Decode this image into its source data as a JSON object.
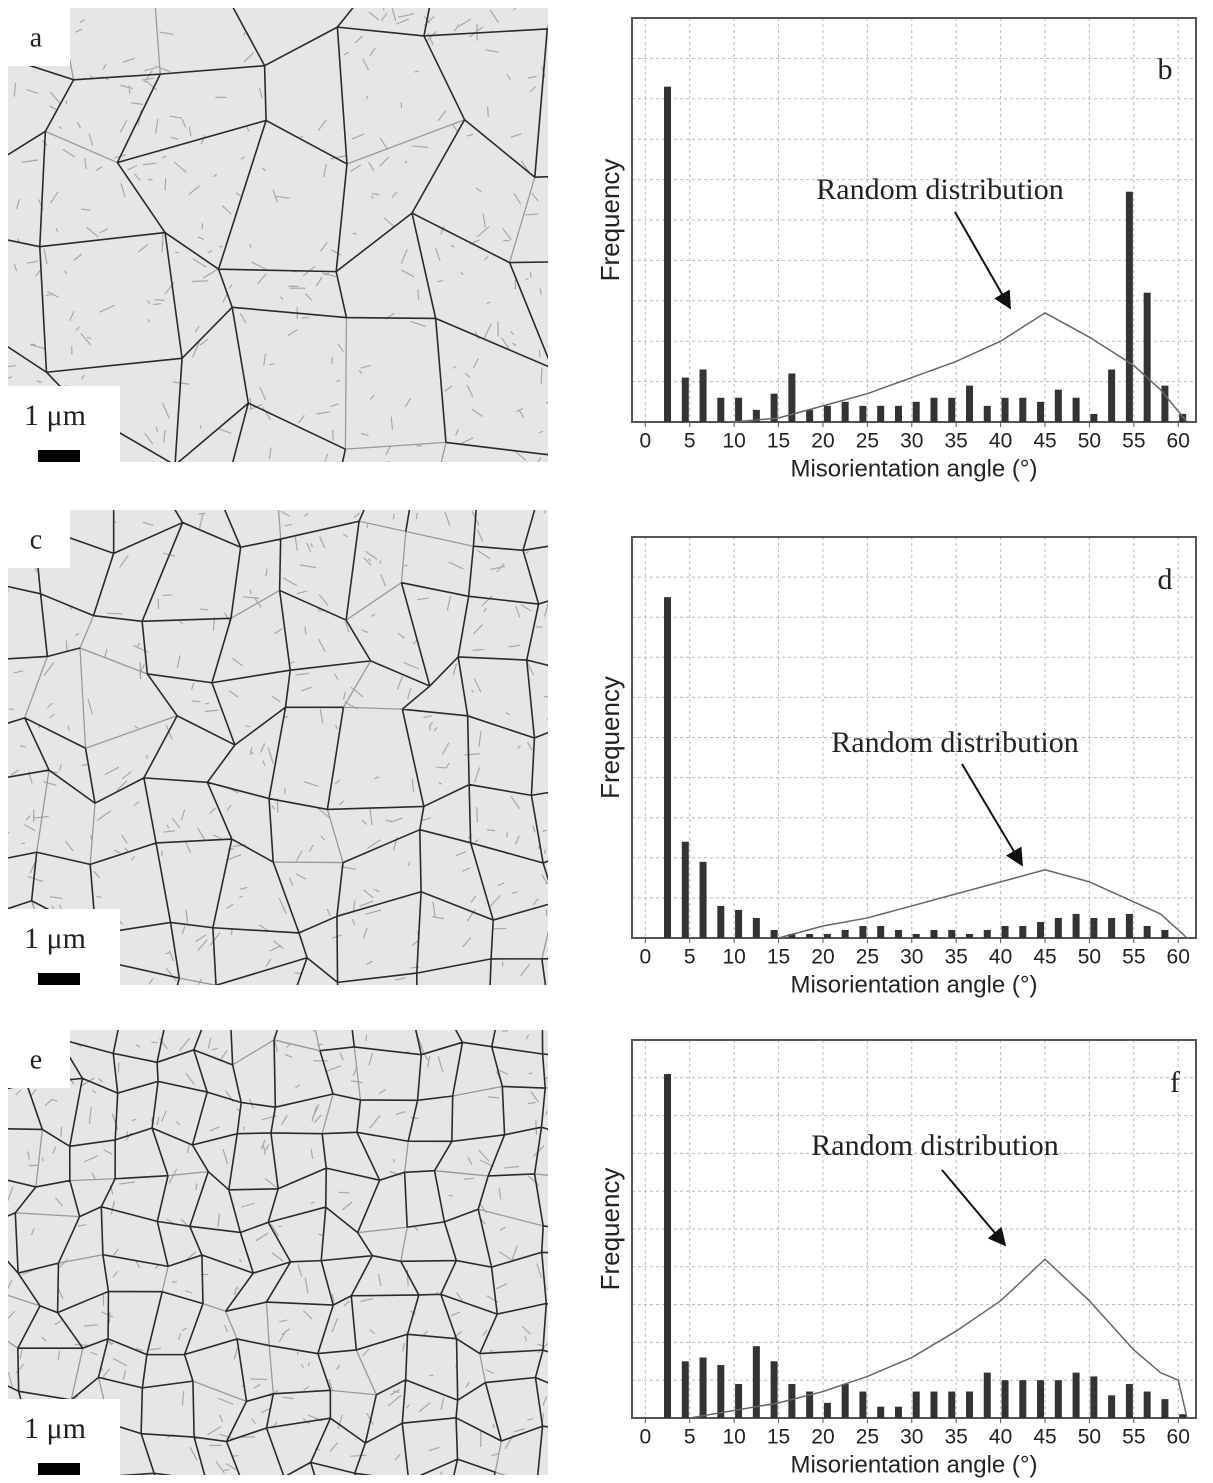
{
  "micrographs": [
    {
      "label": "a",
      "scale_label": "1 μm"
    },
    {
      "label": "c",
      "scale_label": "1 μm"
    },
    {
      "label": "e",
      "scale_label": "1 μm"
    }
  ],
  "chart_data": [
    {
      "type": "bar",
      "label": "b",
      "xlabel": "Misorientation angle (°)",
      "ylabel": "Frequency",
      "annotation": "Random distribution",
      "color": "#333333",
      "x": [
        2.5,
        4.5,
        6.5,
        8.5,
        10.5,
        12.5,
        14.5,
        16.5,
        18.5,
        20.5,
        22.5,
        24.5,
        26.5,
        28.5,
        30.5,
        32.5,
        34.5,
        36.5,
        38.5,
        40.5,
        42.5,
        44.5,
        46.5,
        48.5,
        50.5,
        52.5,
        54.5,
        56.5,
        58.5,
        60.5
      ],
      "values": [
        83,
        11,
        13,
        6,
        6,
        3,
        7,
        12,
        3,
        4,
        5,
        4,
        4,
        4,
        5,
        6,
        6,
        9,
        4,
        6,
        6,
        5,
        8,
        6,
        2,
        13,
        57,
        32,
        9,
        2
      ],
      "curve": {
        "color": "#666666",
        "x": [
          10,
          15,
          20,
          25,
          30,
          35,
          40,
          45,
          50,
          55,
          58,
          61
        ],
        "values": [
          0,
          1,
          4,
          7,
          11,
          15,
          20,
          27,
          21,
          14,
          8,
          0
        ]
      },
      "xlim": [
        -1.5,
        62
      ],
      "ylim": [
        0,
        100
      ],
      "xticks": [
        0,
        5,
        10,
        15,
        20,
        25,
        30,
        35,
        40,
        45,
        50,
        55,
        60
      ],
      "grid": true
    },
    {
      "type": "bar",
      "label": "d",
      "xlabel": "Misorientation angle (°)",
      "ylabel": "Frequency",
      "annotation": "Random distribution",
      "color": "#333333",
      "x": [
        2.5,
        4.5,
        6.5,
        8.5,
        10.5,
        12.5,
        14.5,
        16.5,
        18.5,
        20.5,
        22.5,
        24.5,
        26.5,
        28.5,
        30.5,
        32.5,
        34.5,
        36.5,
        38.5,
        40.5,
        42.5,
        44.5,
        46.5,
        48.5,
        50.5,
        52.5,
        54.5,
        56.5,
        58.5
      ],
      "values": [
        85,
        24,
        19,
        8,
        7,
        5,
        2,
        1,
        1,
        1,
        2,
        3,
        3,
        2,
        1,
        2,
        2,
        1,
        2,
        3,
        3,
        4,
        5,
        6,
        5,
        5,
        6,
        3,
        2
      ],
      "curve": {
        "color": "#666666",
        "x": [
          15,
          20,
          25,
          30,
          35,
          40,
          45,
          50,
          55,
          58,
          61
        ],
        "values": [
          0,
          3,
          5,
          8,
          11,
          14,
          17,
          14,
          9,
          6,
          0
        ]
      },
      "xlim": [
        -1.5,
        62
      ],
      "ylim": [
        0,
        100
      ],
      "xticks": [
        0,
        5,
        10,
        15,
        20,
        25,
        30,
        35,
        40,
        45,
        50,
        55,
        60
      ],
      "grid": true
    },
    {
      "type": "bar",
      "label": "f",
      "xlabel": "Misorientation angle (°)",
      "ylabel": "Frequency",
      "annotation": "Random distribution",
      "color": "#333333",
      "x": [
        2.5,
        4.5,
        6.5,
        8.5,
        10.5,
        12.5,
        14.5,
        16.5,
        18.5,
        20.5,
        22.5,
        24.5,
        26.5,
        28.5,
        30.5,
        32.5,
        34.5,
        36.5,
        38.5,
        40.5,
        42.5,
        44.5,
        46.5,
        48.5,
        50.5,
        52.5,
        54.5,
        56.5,
        58.5,
        60.5
      ],
      "values": [
        91,
        15,
        16,
        14,
        9,
        19,
        15,
        9,
        7,
        4,
        9,
        7,
        3,
        3,
        7,
        7,
        7,
        7,
        12,
        10,
        10,
        10,
        10,
        12,
        11,
        6,
        9,
        7,
        5,
        1
      ],
      "curve": {
        "color": "#666666",
        "x": [
          5,
          10,
          15,
          20,
          25,
          30,
          35,
          40,
          45,
          50,
          55,
          58,
          60,
          61
        ],
        "values": [
          0,
          2,
          4,
          7,
          11,
          16,
          23,
          31,
          42,
          31,
          18,
          12,
          10,
          0
        ]
      },
      "xlim": [
        -1.5,
        62
      ],
      "ylim": [
        0,
        100
      ],
      "xticks": [
        0,
        5,
        10,
        15,
        20,
        25,
        30,
        35,
        40,
        45,
        50,
        55,
        60
      ],
      "grid": true
    }
  ]
}
